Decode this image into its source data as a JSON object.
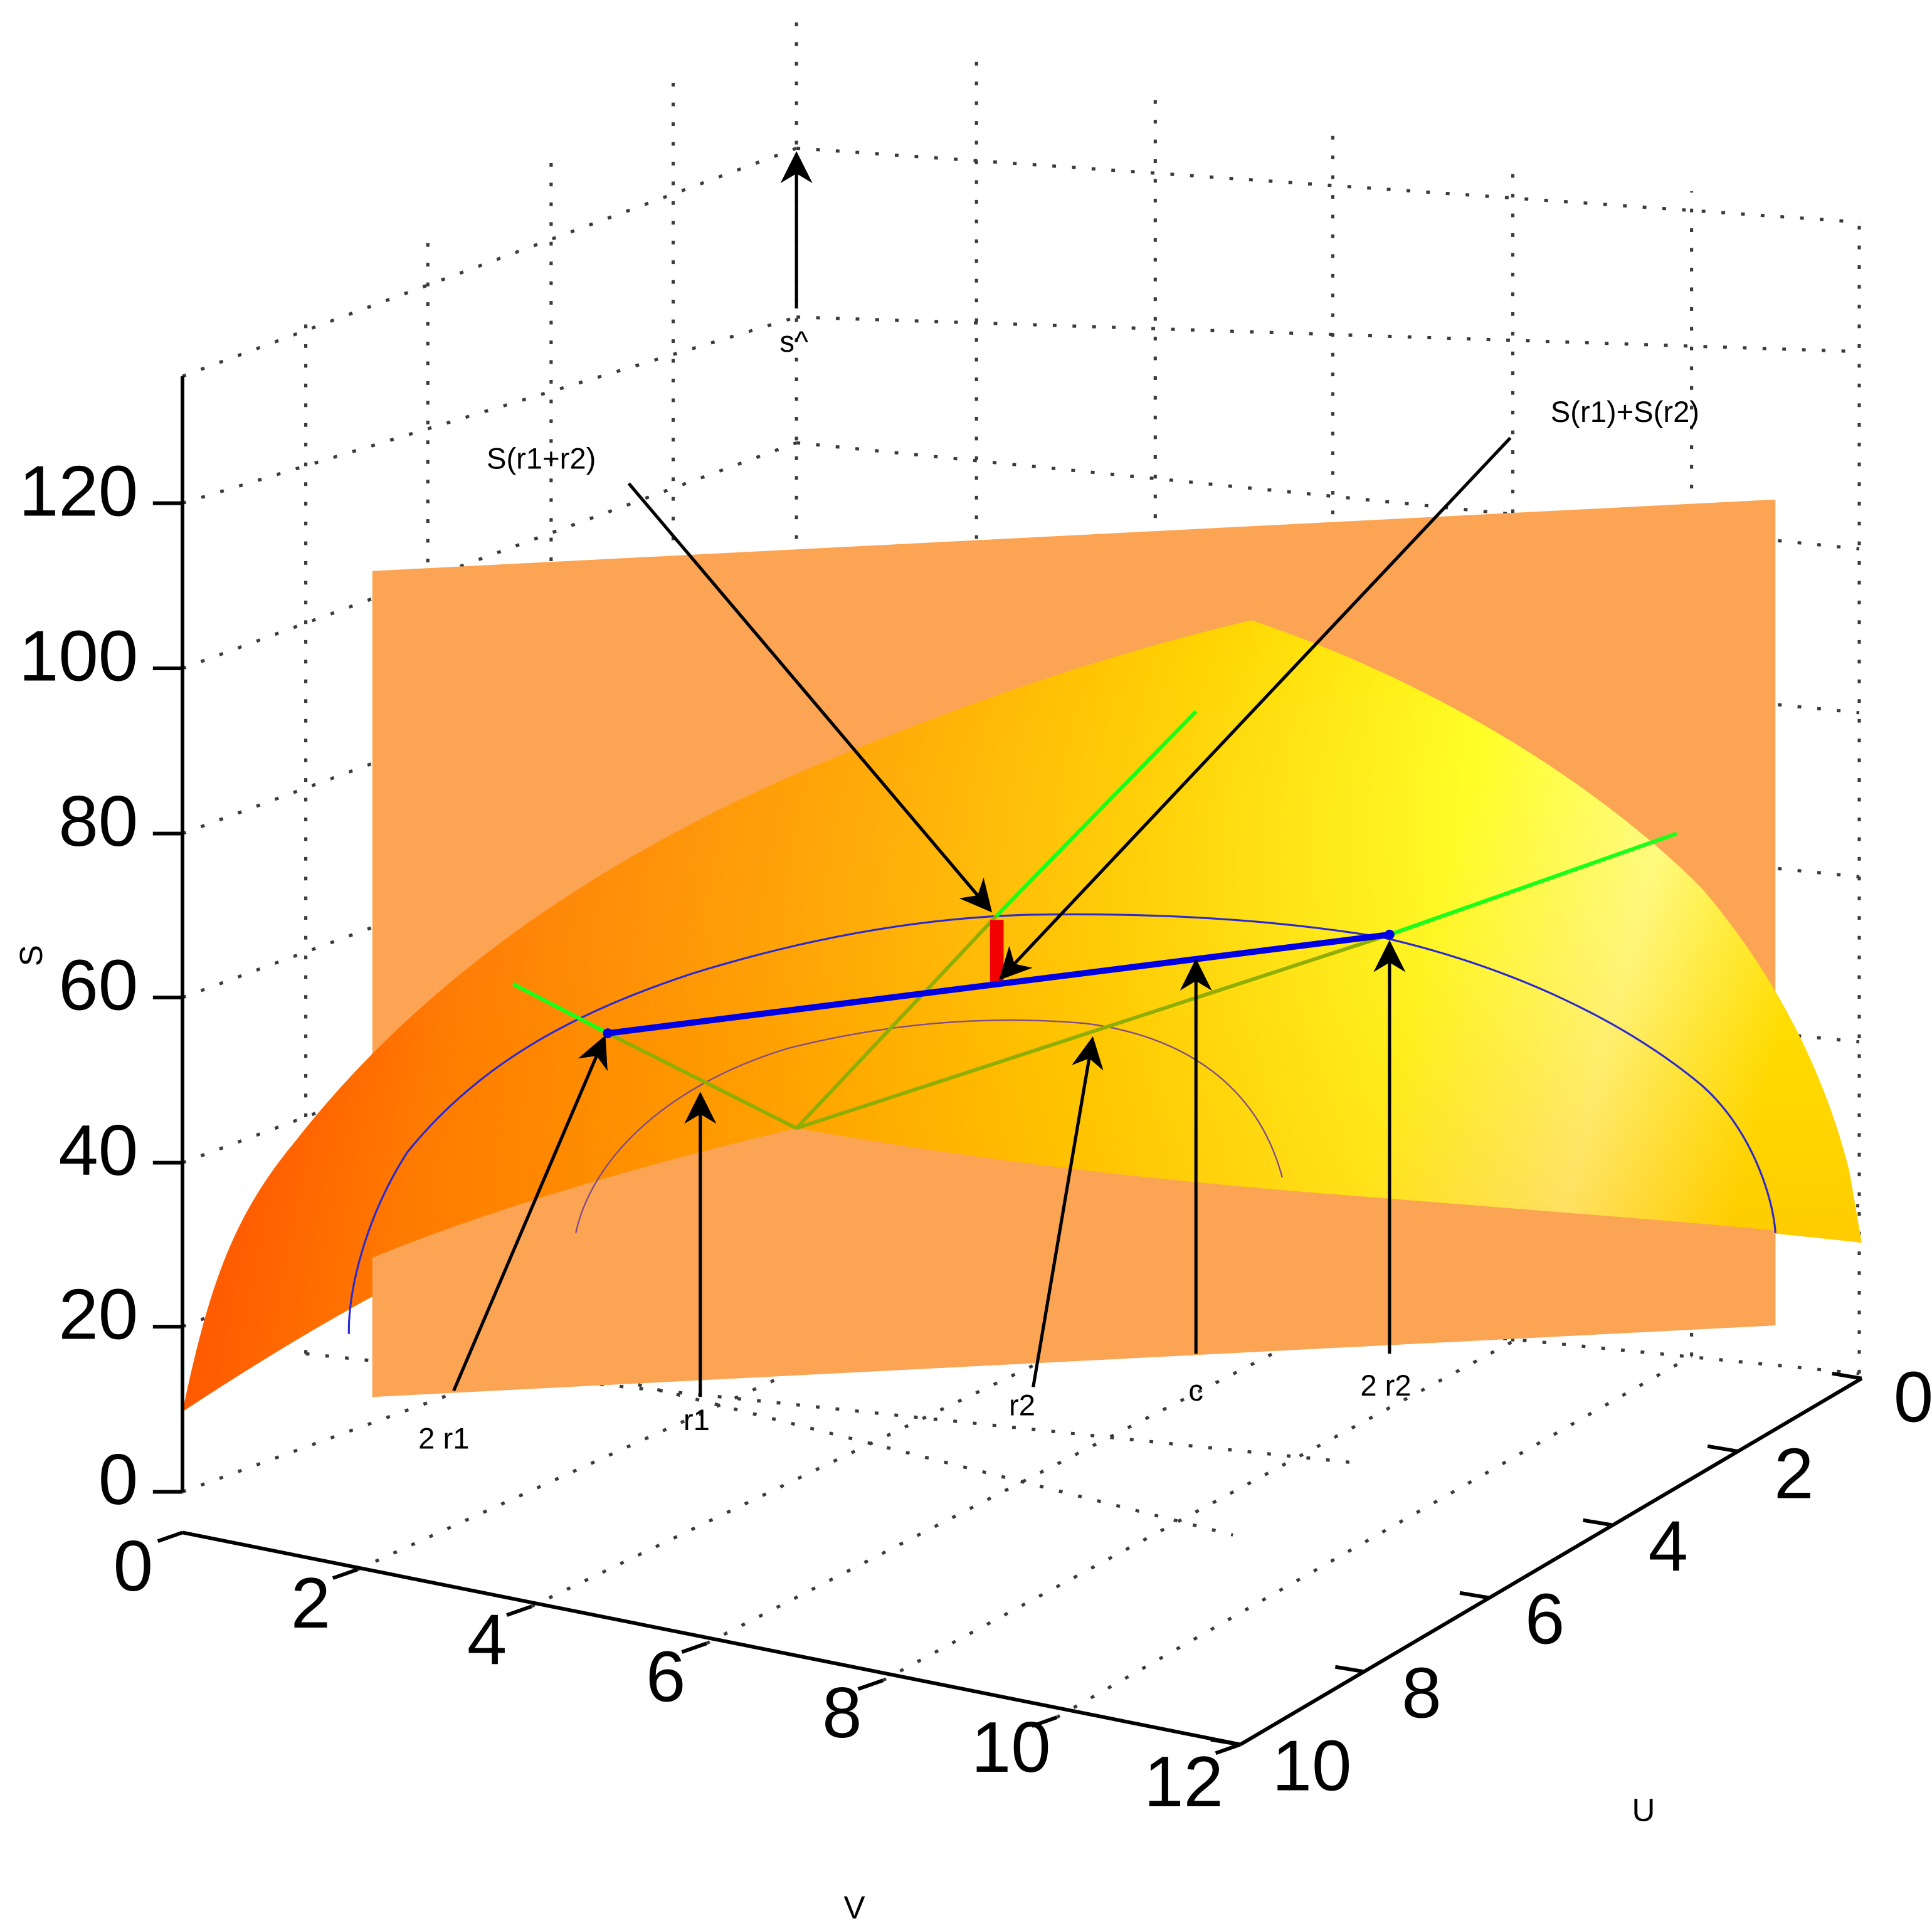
{
  "chart_data": {
    "type": "surface3d",
    "title": "",
    "xlabel": "U",
    "ylabel": "V",
    "zlabel": "S",
    "top_label": "s^",
    "xlim": [
      0,
      10
    ],
    "ylim": [
      0,
      12
    ],
    "zlim": [
      0,
      135
    ],
    "grid": true,
    "x_ticks": [
      "0",
      "2",
      "4",
      "6",
      "8",
      "10"
    ],
    "y_ticks": [
      "0",
      "2",
      "4",
      "6",
      "8",
      "10",
      "12"
    ],
    "z_ticks": [
      "0",
      "20",
      "40",
      "60",
      "80",
      "100",
      "120"
    ],
    "annotations": {
      "S_sum_arg": "S(r1+r2)",
      "S_sum_func": "S(r1)+S(r2)",
      "two_r1": "2 r1",
      "r1": "r1",
      "r2": "r2",
      "c": "c",
      "two_r2": "2 r2"
    },
    "colors": {
      "plane": "#fba453",
      "surface_low": "#ff1400",
      "surface_mid": "#ff9a00",
      "surface_high": "#ffff6e",
      "chord": "#0000e6",
      "curve": "#2a2ad0",
      "rays": "#19ff19",
      "gap": "#f20000"
    }
  }
}
